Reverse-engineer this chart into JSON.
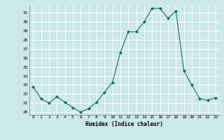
{
  "x": [
    0,
    1,
    2,
    3,
    4,
    5,
    6,
    7,
    8,
    9,
    10,
    11,
    12,
    13,
    14,
    15,
    16,
    17,
    18,
    19,
    20,
    21,
    22,
    23
  ],
  "y": [
    22.8,
    21.5,
    21.0,
    21.7,
    21.1,
    20.5,
    20.0,
    20.4,
    21.1,
    22.2,
    23.3,
    26.6,
    28.9,
    28.9,
    30.0,
    31.5,
    31.5,
    30.4,
    31.2,
    24.6,
    23.0,
    21.5,
    21.3,
    21.6
  ],
  "line_color": "#1a6b5a",
  "marker": "D",
  "marker_size": 2,
  "bg_color": "#cce8e8",
  "grid_color": "#ffffff",
  "grid_minor_color": "#ddf0f0",
  "xlabel": "Humidex (Indice chaleur)",
  "ylim": [
    19.7,
    31.8
  ],
  "xlim": [
    -0.5,
    23.5
  ],
  "yticks": [
    20,
    21,
    22,
    23,
    24,
    25,
    26,
    27,
    28,
    29,
    30,
    31
  ],
  "xticks": [
    0,
    1,
    2,
    3,
    4,
    5,
    6,
    7,
    8,
    9,
    10,
    11,
    12,
    13,
    14,
    15,
    16,
    17,
    18,
    19,
    20,
    21,
    22,
    23
  ]
}
